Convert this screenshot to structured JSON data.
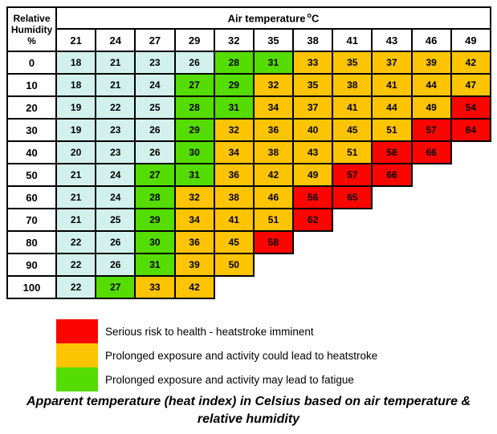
{
  "table": {
    "corner_line1": "Relative",
    "corner_line2": "Humidity",
    "corner_line3": "%",
    "header_label": "Air temperature",
    "header_degree": "o",
    "header_unit": "C"
  },
  "zone_colors": {
    "c": "#D2F1EC",
    "g": "#55DC00",
    "o": "#FDC404",
    "r": "#FA0500"
  },
  "legend": {
    "items": [
      {
        "zone": "r",
        "label": "Serious risk to health - heatstroke imminent"
      },
      {
        "zone": "o",
        "label": "Prolonged exposure and activity could lead to heatstroke"
      },
      {
        "zone": "g",
        "label": "Prolonged exposure and activity may lead to fatigue"
      }
    ]
  },
  "caption": {
    "line1": "Apparent temperature (heat index) in Celsius based on air temperature &",
    "line2": "relative humidity"
  },
  "chart_data": {
    "type": "heatmap",
    "title": "Apparent temperature (heat index) in Celsius based on air temperature & relative humidity",
    "x_label": "Air temperature °C",
    "y_label": "Relative Humidity %",
    "air_temps": [
      21,
      24,
      27,
      29,
      32,
      35,
      38,
      41,
      43,
      46,
      49
    ],
    "humidity_levels": [
      0,
      10,
      20,
      30,
      40,
      50,
      60,
      70,
      80,
      90,
      100
    ],
    "values": [
      [
        18,
        21,
        23,
        26,
        28,
        31,
        33,
        35,
        37,
        39,
        42
      ],
      [
        18,
        21,
        24,
        27,
        29,
        32,
        35,
        38,
        41,
        44,
        47
      ],
      [
        19,
        22,
        25,
        28,
        31,
        34,
        37,
        41,
        44,
        49,
        54
      ],
      [
        19,
        23,
        26,
        29,
        32,
        36,
        40,
        45,
        51,
        57,
        64
      ],
      [
        20,
        23,
        26,
        30,
        34,
        38,
        43,
        51,
        58,
        66,
        null
      ],
      [
        21,
        24,
        27,
        31,
        36,
        42,
        49,
        57,
        66,
        null,
        null
      ],
      [
        21,
        24,
        28,
        32,
        38,
        46,
        56,
        65,
        null,
        null,
        null
      ],
      [
        21,
        25,
        29,
        34,
        41,
        51,
        62,
        null,
        null,
        null,
        null
      ],
      [
        22,
        26,
        30,
        36,
        45,
        58,
        null,
        null,
        null,
        null,
        null
      ],
      [
        22,
        26,
        31,
        39,
        50,
        null,
        null,
        null,
        null,
        null,
        null
      ],
      [
        22,
        27,
        33,
        42,
        null,
        null,
        null,
        null,
        null,
        null,
        null
      ]
    ],
    "zones": [
      [
        "c",
        "c",
        "c",
        "c",
        "g",
        "g",
        "o",
        "o",
        "o",
        "o",
        "o"
      ],
      [
        "c",
        "c",
        "c",
        "g",
        "g",
        "o",
        "o",
        "o",
        "o",
        "o",
        "o"
      ],
      [
        "c",
        "c",
        "c",
        "g",
        "g",
        "o",
        "o",
        "o",
        "o",
        "o",
        "r"
      ],
      [
        "c",
        "c",
        "c",
        "g",
        "o",
        "o",
        "o",
        "o",
        "o",
        "r",
        "r"
      ],
      [
        "c",
        "c",
        "c",
        "g",
        "o",
        "o",
        "o",
        "o",
        "r",
        "r",
        null
      ],
      [
        "c",
        "c",
        "g",
        "g",
        "o",
        "o",
        "o",
        "r",
        "r",
        null,
        null
      ],
      [
        "c",
        "c",
        "g",
        "o",
        "o",
        "o",
        "r",
        "r",
        null,
        null,
        null
      ],
      [
        "c",
        "c",
        "g",
        "o",
        "o",
        "o",
        "r",
        null,
        null,
        null,
        null
      ],
      [
        "c",
        "c",
        "g",
        "o",
        "o",
        "r",
        null,
        null,
        null,
        null,
        null
      ],
      [
        "c",
        "c",
        "g",
        "o",
        "o",
        null,
        null,
        null,
        null,
        null,
        null
      ],
      [
        "c",
        "g",
        "o",
        "o",
        null,
        null,
        null,
        null,
        null,
        null,
        null
      ]
    ],
    "legend_position": "below",
    "grid": true
  }
}
